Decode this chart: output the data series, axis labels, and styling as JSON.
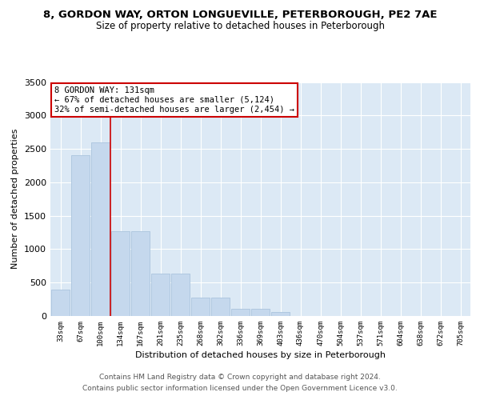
{
  "title1": "8, GORDON WAY, ORTON LONGUEVILLE, PETERBOROUGH, PE2 7AE",
  "title2": "Size of property relative to detached houses in Peterborough",
  "xlabel": "Distribution of detached houses by size in Peterborough",
  "ylabel": "Number of detached properties",
  "categories": [
    "33sqm",
    "67sqm",
    "100sqm",
    "134sqm",
    "167sqm",
    "201sqm",
    "235sqm",
    "268sqm",
    "302sqm",
    "336sqm",
    "369sqm",
    "403sqm",
    "436sqm",
    "470sqm",
    "504sqm",
    "537sqm",
    "571sqm",
    "604sqm",
    "638sqm",
    "672sqm",
    "705sqm"
  ],
  "values": [
    390,
    2400,
    2600,
    1270,
    1270,
    640,
    640,
    270,
    270,
    110,
    110,
    55,
    0,
    0,
    0,
    0,
    0,
    0,
    0,
    0,
    0
  ],
  "bar_color": "#c5d8ed",
  "bar_edge_color": "#aac4de",
  "vline_color": "#cc0000",
  "vline_position": 2.5,
  "annotation_text": "8 GORDON WAY: 131sqm\n← 67% of detached houses are smaller (5,124)\n32% of semi-detached houses are larger (2,454) →",
  "annotation_box_facecolor": "#ffffff",
  "annotation_box_edgecolor": "#cc0000",
  "ylim": [
    0,
    3500
  ],
  "yticks": [
    0,
    500,
    1000,
    1500,
    2000,
    2500,
    3000,
    3500
  ],
  "plot_bg_color": "#dce9f5",
  "footer_line1": "Contains HM Land Registry data © Crown copyright and database right 2024.",
  "footer_line2": "Contains public sector information licensed under the Open Government Licence v3.0.",
  "title1_fontsize": 9.5,
  "title2_fontsize": 8.5,
  "ylabel_fontsize": 8,
  "xlabel_fontsize": 8,
  "ytick_fontsize": 8,
  "xtick_fontsize": 6.5,
  "annotation_fontsize": 7.5,
  "footer_fontsize": 6.5
}
